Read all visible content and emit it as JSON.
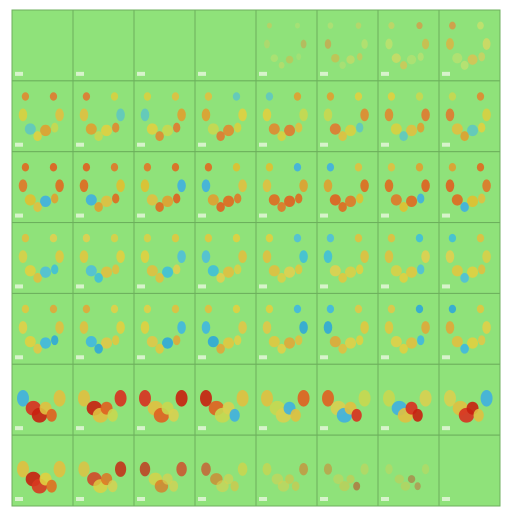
{
  "grid": {
    "rows": 7,
    "columns": 8
  }
}
